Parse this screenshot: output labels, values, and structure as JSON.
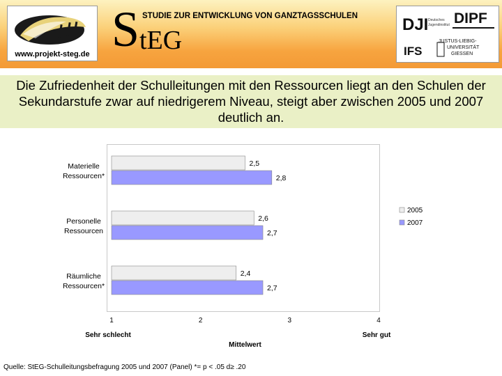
{
  "header": {
    "url": "www.projekt-steg.de",
    "logo_letter_big": "S",
    "logo_rest": "tEG",
    "study_title": "STUDIE ZUR ENTWICKLUNG VON GANZTAGSSCHULEN",
    "partners": {
      "dji": "DJI",
      "dji_sub1": "Deutsches",
      "dji_sub2": "Jugendinstitut",
      "dipf": "DIPF",
      "ifs": "IFS",
      "uni1": "JUSTUS-LIEBIG-",
      "uni2": "UNIVERSITÄT",
      "uni3": "GIESSEN"
    }
  },
  "banner": {
    "text": "Die Zufriedenheit der Schulleitungen mit den Ressourcen liegt an den Schulen der Sekundarstufe zwar auf niedrigerem Niveau, steigt aber zwischen 2005 und 2007 deutlich an."
  },
  "chart_data": {
    "type": "bar",
    "orientation": "horizontal",
    "categories": [
      [
        "Materielle",
        "Ressourcen*"
      ],
      [
        "Personelle",
        "Ressourcen"
      ],
      [
        "Räumliche",
        "Ressourcen*"
      ]
    ],
    "series": [
      {
        "name": "2005",
        "values": [
          2.5,
          2.6,
          2.4
        ],
        "labels": [
          "2,5",
          "2,6",
          "2,4"
        ],
        "color": "#eeeeee"
      },
      {
        "name": "2007",
        "values": [
          2.8,
          2.7,
          2.7
        ],
        "labels": [
          "2,8",
          "2,7",
          "2,7"
        ],
        "color": "#9999ff"
      }
    ],
    "xlim": [
      1,
      4
    ],
    "xticks": [
      "1",
      "2",
      "3",
      "4"
    ],
    "xlabel": "Mittelwert",
    "x_low_label": "Sehr schlecht",
    "x_high_label": "Sehr gut",
    "legend_position": "right"
  },
  "footer": {
    "source": "Quelle: StEG-Schulleitungsbefragung 2005 und 2007 (Panel)  *= p < .05  d≥ .20"
  }
}
